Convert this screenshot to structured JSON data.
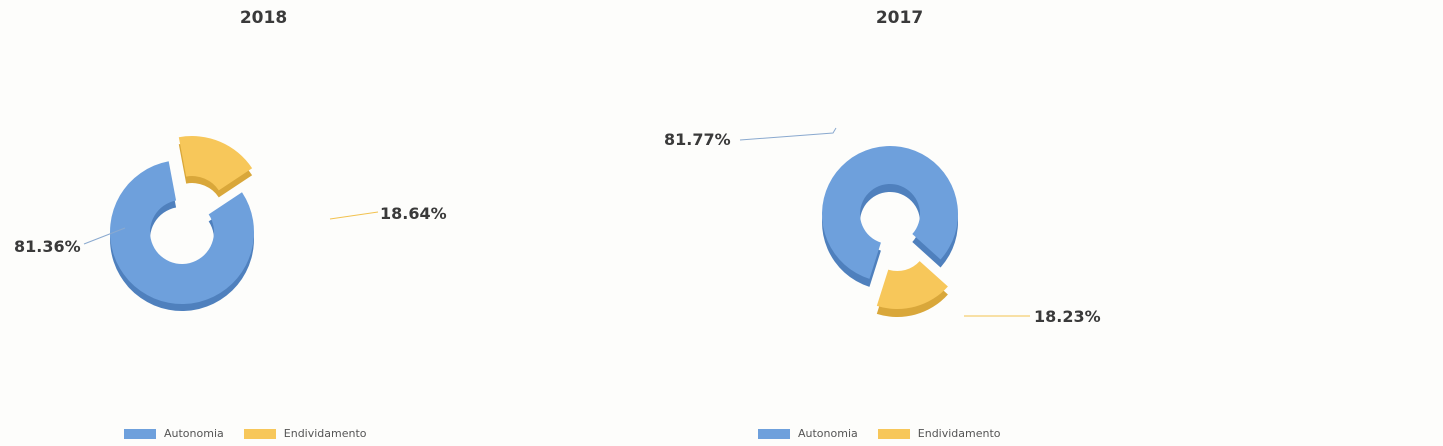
{
  "colors": {
    "autonomia": "#6ea0dc",
    "autonomia_dark": "#4f80bd",
    "endividamento": "#f7c75a",
    "endividamento_dark": "#d9a73a",
    "leader": "#8aa9cf",
    "leader_yellow": "#f2c24f",
    "text": "#3a3a3a"
  },
  "chart_data": [
    {
      "type": "pie",
      "title": "2018",
      "categories": [
        "Autonomia",
        "Endividamento"
      ],
      "values": [
        81.36,
        18.64
      ],
      "labels": [
        "81.36%",
        "18.64%"
      ],
      "legend": [
        "Autonomia",
        "Endividamento"
      ],
      "legend_position": "bottom"
    },
    {
      "type": "pie",
      "title": "2017",
      "categories": [
        "Autonomia",
        "Endividamento"
      ],
      "values": [
        81.77,
        18.23
      ],
      "labels": [
        "81.77%",
        "18.23%"
      ],
      "legend": [
        "Autonomia",
        "Endividamento"
      ],
      "legend_position": "bottom"
    }
  ]
}
